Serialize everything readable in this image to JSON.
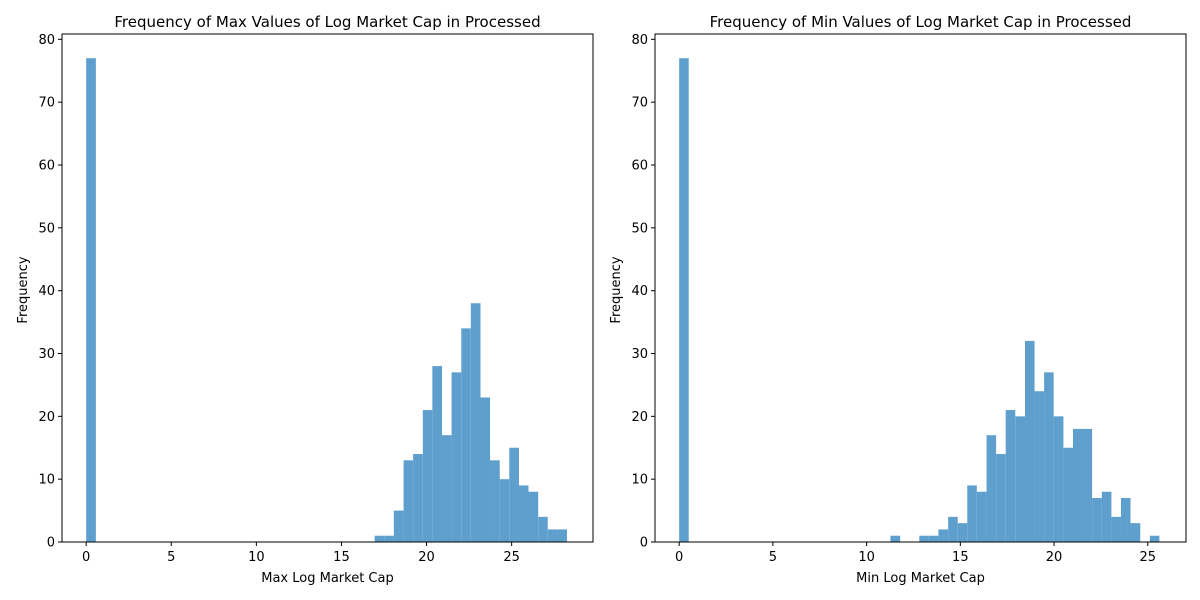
{
  "chart_data": [
    {
      "type": "bar",
      "title": "Frequency of Max Values of Log Market Cap in Processed",
      "xlabel": "Max Log Market Cap",
      "ylabel": "Frequency",
      "xlim": [
        -1.42,
        29.78
      ],
      "ylim": [
        0,
        80.85
      ],
      "xticks": [
        0,
        5,
        10,
        15,
        20,
        25
      ],
      "yticks": [
        0,
        10,
        20,
        30,
        40,
        50,
        60,
        70,
        80
      ],
      "bar_color": "#5f9fcd",
      "bins": [
        {
          "x0": 0.0,
          "x1": 0.57,
          "count": 77
        },
        {
          "x0": 16.95,
          "x1": 17.52,
          "count": 1
        },
        {
          "x0": 17.52,
          "x1": 18.08,
          "count": 1
        },
        {
          "x0": 18.08,
          "x1": 18.65,
          "count": 5
        },
        {
          "x0": 18.65,
          "x1": 19.21,
          "count": 13
        },
        {
          "x0": 19.21,
          "x1": 19.78,
          "count": 14
        },
        {
          "x0": 19.78,
          "x1": 20.34,
          "count": 21
        },
        {
          "x0": 20.34,
          "x1": 20.91,
          "count": 28
        },
        {
          "x0": 20.91,
          "x1": 21.47,
          "count": 17
        },
        {
          "x0": 21.47,
          "x1": 22.04,
          "count": 27
        },
        {
          "x0": 22.04,
          "x1": 22.6,
          "count": 34
        },
        {
          "x0": 22.6,
          "x1": 23.17,
          "count": 38
        },
        {
          "x0": 23.17,
          "x1": 23.73,
          "count": 23
        },
        {
          "x0": 23.73,
          "x1": 24.3,
          "count": 13
        },
        {
          "x0": 24.3,
          "x1": 24.86,
          "count": 10
        },
        {
          "x0": 24.86,
          "x1": 25.43,
          "count": 15
        },
        {
          "x0": 25.43,
          "x1": 25.99,
          "count": 9
        },
        {
          "x0": 25.99,
          "x1": 26.56,
          "count": 8
        },
        {
          "x0": 26.56,
          "x1": 27.12,
          "count": 4
        },
        {
          "x0": 27.12,
          "x1": 27.69,
          "count": 2
        },
        {
          "x0": 27.69,
          "x1": 28.25,
          "count": 2
        }
      ]
    },
    {
      "type": "bar",
      "title": "Frequency of Min Values of Log Market Cap in Processed",
      "xlabel": "Min Log Market Cap",
      "ylabel": "Frequency",
      "xlim": [
        -1.29,
        27.04
      ],
      "ylim": [
        0,
        80.85
      ],
      "xticks": [
        0,
        5,
        10,
        15,
        20,
        25
      ],
      "yticks": [
        0,
        10,
        20,
        30,
        40,
        50,
        60,
        70,
        80
      ],
      "bar_color": "#5f9fcd",
      "bins": [
        {
          "x0": 0.0,
          "x1": 0.51,
          "count": 77
        },
        {
          "x0": 11.27,
          "x1": 11.79,
          "count": 1
        },
        {
          "x0": 12.81,
          "x1": 13.32,
          "count": 1
        },
        {
          "x0": 13.32,
          "x1": 13.83,
          "count": 1
        },
        {
          "x0": 13.83,
          "x1": 14.35,
          "count": 2
        },
        {
          "x0": 14.35,
          "x1": 14.86,
          "count": 4
        },
        {
          "x0": 14.86,
          "x1": 15.37,
          "count": 3
        },
        {
          "x0": 15.37,
          "x1": 15.88,
          "count": 9
        },
        {
          "x0": 15.88,
          "x1": 16.4,
          "count": 8
        },
        {
          "x0": 16.4,
          "x1": 16.91,
          "count": 17
        },
        {
          "x0": 16.91,
          "x1": 17.42,
          "count": 14
        },
        {
          "x0": 17.42,
          "x1": 17.93,
          "count": 21
        },
        {
          "x0": 17.93,
          "x1": 18.45,
          "count": 20
        },
        {
          "x0": 18.45,
          "x1": 18.96,
          "count": 32
        },
        {
          "x0": 18.96,
          "x1": 19.47,
          "count": 24
        },
        {
          "x0": 19.47,
          "x1": 19.98,
          "count": 27
        },
        {
          "x0": 19.98,
          "x1": 20.5,
          "count": 20
        },
        {
          "x0": 20.5,
          "x1": 21.01,
          "count": 15
        },
        {
          "x0": 21.01,
          "x1": 21.52,
          "count": 18
        },
        {
          "x0": 21.52,
          "x1": 22.03,
          "count": 18
        },
        {
          "x0": 22.03,
          "x1": 22.55,
          "count": 7
        },
        {
          "x0": 22.55,
          "x1": 23.06,
          "count": 8
        },
        {
          "x0": 23.06,
          "x1": 23.57,
          "count": 4
        },
        {
          "x0": 23.57,
          "x1": 24.08,
          "count": 7
        },
        {
          "x0": 24.08,
          "x1": 24.6,
          "count": 3
        },
        {
          "x0": 25.11,
          "x1": 25.62,
          "count": 1
        }
      ]
    }
  ]
}
